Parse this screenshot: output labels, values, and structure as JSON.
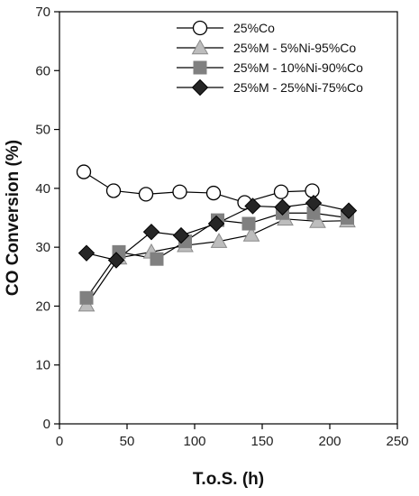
{
  "chart_data": {
    "type": "line",
    "xlabel": "T.o.S. (h)",
    "ylabel": "CO Conversion (%)",
    "xlim": [
      0,
      250
    ],
    "ylim": [
      0,
      70
    ],
    "xticks": [
      0,
      50,
      100,
      150,
      200,
      250
    ],
    "yticks": [
      0,
      10,
      20,
      30,
      40,
      50,
      60,
      70
    ],
    "grid": false,
    "legend_position": "top-right",
    "series": [
      {
        "name": "25%Co",
        "marker": "circle",
        "marker_fill": "#ffffff",
        "marker_stroke": "#000000",
        "points": [
          [
            18,
            42.8
          ],
          [
            40,
            39.6
          ],
          [
            64,
            39.0
          ],
          [
            89,
            39.4
          ],
          [
            114,
            39.2
          ],
          [
            137,
            37.6
          ],
          [
            164,
            39.4
          ],
          [
            187,
            39.6
          ]
        ]
      },
      {
        "name": "25%M - 5%Ni-95%Co",
        "marker": "triangle",
        "marker_fill": "#bdbdbd",
        "marker_stroke": "#8a8a8a",
        "points": [
          [
            20,
            20.2
          ],
          [
            44,
            28.2
          ],
          [
            68,
            29.2
          ],
          [
            93,
            30.3
          ],
          [
            118,
            31.0
          ],
          [
            142,
            32.1
          ],
          [
            167,
            34.8
          ],
          [
            191,
            34.4
          ],
          [
            213,
            34.5
          ]
        ]
      },
      {
        "name": "25%M - 10%Ni-90%Co",
        "marker": "square",
        "marker_fill": "#808080",
        "marker_stroke": "#808080",
        "points": [
          [
            20,
            21.4
          ],
          [
            44,
            29.2
          ],
          [
            72,
            28.0
          ],
          [
            93,
            31.0
          ],
          [
            117,
            34.6
          ],
          [
            140,
            34.0
          ],
          [
            165,
            35.8
          ],
          [
            188,
            35.8
          ],
          [
            213,
            35.0
          ]
        ]
      },
      {
        "name": "25%M - 25%Ni-75%Co",
        "marker": "diamond",
        "marker_fill": "#262626",
        "marker_stroke": "#000000",
        "points": [
          [
            20,
            29.0
          ],
          [
            42,
            27.8
          ],
          [
            68,
            32.6
          ],
          [
            90,
            32.0
          ],
          [
            116,
            34.0
          ],
          [
            143,
            37.0
          ],
          [
            165,
            36.8
          ],
          [
            188,
            37.5
          ],
          [
            214,
            36.2
          ]
        ]
      }
    ]
  }
}
